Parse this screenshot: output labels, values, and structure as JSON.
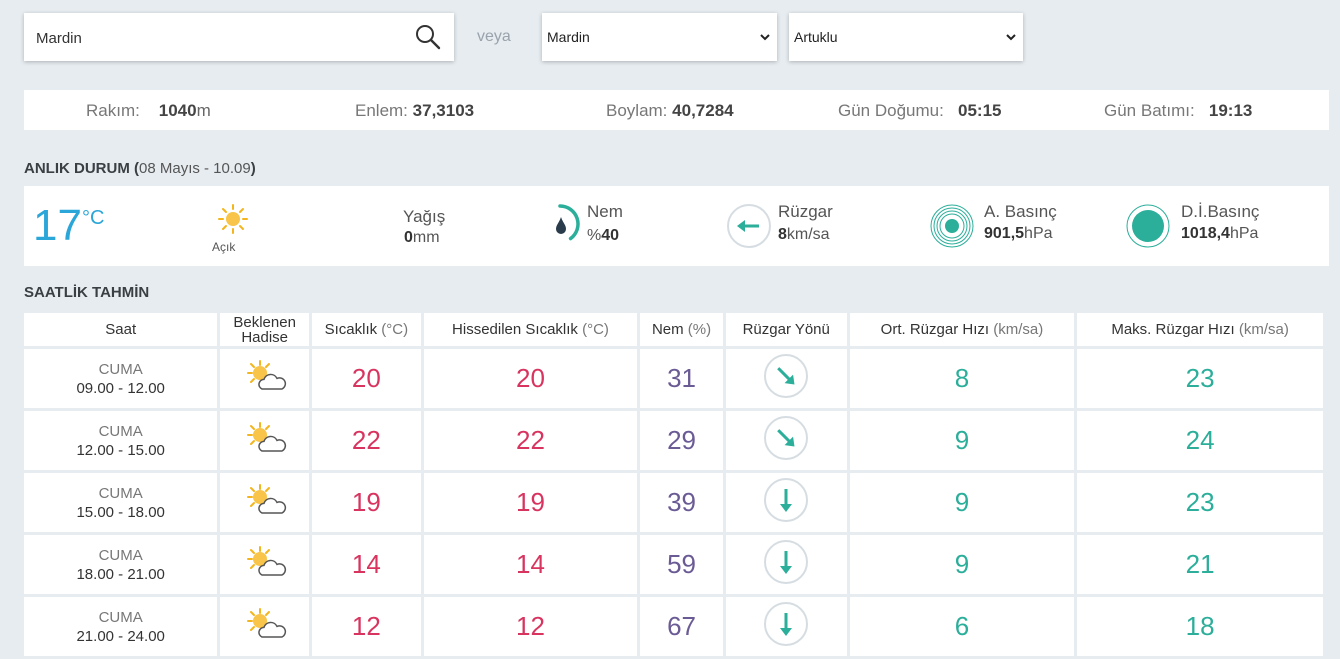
{
  "search": {
    "value": "Mardin"
  },
  "or_label": "veya",
  "city_select": {
    "selected": "Mardin"
  },
  "district_select": {
    "selected": "Artuklu"
  },
  "location_info": {
    "altitude_label": "Rakım:",
    "altitude_value": "1040",
    "altitude_unit": "m",
    "latitude_label": "Enlem:",
    "latitude_value": "37,3103",
    "longitude_label": "Boylam:",
    "longitude_value": "40,7284",
    "sunrise_label": "Gün Doğumu:",
    "sunrise_value": "05:15",
    "sunset_label": "Gün Batımı:",
    "sunset_value": "19:13"
  },
  "current": {
    "title": "ANLIK DURUM",
    "paren_open": " (",
    "date": "08 Mayıs - 10.09",
    "paren_close": ")",
    "temperature": "17",
    "temp_unit": "°C",
    "condition": "Açık",
    "condition_icon": "sun-icon",
    "precip_label": "Yağış",
    "precip_value": "0",
    "precip_unit": "mm",
    "humidity_label": "Nem",
    "humidity_prefix": "%",
    "humidity_value": "40",
    "humidity_fraction": 0.4,
    "wind_label": "Rüzgar",
    "wind_value": "8",
    "wind_unit": "km/sa",
    "wind_icon": "arrow-left-icon",
    "pressure_label": "A. Basınç",
    "pressure_value": "901,5",
    "pressure_unit": "hPa",
    "sea_pressure_label": "D.İ.Basınç",
    "sea_pressure_value": "1018,4",
    "sea_pressure_unit": "hPa",
    "accent_color": "#2bae9a",
    "temp_color": "#2aa6d8"
  },
  "hourly": {
    "title": "SAATLİK TAHMİN",
    "headers": {
      "time": "Saat",
      "event_1": "Beklenen",
      "event_2": "Hadise",
      "temp": "Sıcaklık",
      "temp_unit": "(°C)",
      "feels": "Hissedilen Sıcaklık",
      "feels_unit": "(°C)",
      "humidity": "Nem",
      "humidity_unit": "(%)",
      "wind_dir": "Rüzgar Yönü",
      "wind_avg": "Ort. Rüzgar Hızı",
      "wind_avg_unit": "(km/sa)",
      "wind_max": "Maks. Rüzgar Hızı",
      "wind_max_unit": "(km/sa)"
    },
    "rows": [
      {
        "day": "CUMA",
        "time": "09.00 - 12.00",
        "icon": "partly-cloudy-icon",
        "temp": "20",
        "feels": "20",
        "humidity": "31",
        "wind_dir": "arrow-down-right-icon",
        "wind_avg": "8",
        "wind_max": "23"
      },
      {
        "day": "CUMA",
        "time": "12.00 - 15.00",
        "icon": "partly-cloudy-icon",
        "temp": "22",
        "feels": "22",
        "humidity": "29",
        "wind_dir": "arrow-down-right-icon",
        "wind_avg": "9",
        "wind_max": "24"
      },
      {
        "day": "CUMA",
        "time": "15.00 - 18.00",
        "icon": "partly-cloudy-icon",
        "temp": "19",
        "feels": "19",
        "humidity": "39",
        "wind_dir": "arrow-down-icon",
        "wind_avg": "9",
        "wind_max": "23"
      },
      {
        "day": "CUMA",
        "time": "18.00 - 21.00",
        "icon": "partly-cloudy-icon",
        "temp": "14",
        "feels": "14",
        "humidity": "59",
        "wind_dir": "arrow-down-icon",
        "wind_avg": "9",
        "wind_max": "21"
      },
      {
        "day": "CUMA",
        "time": "21.00 - 24.00",
        "icon": "partly-cloudy-icon",
        "temp": "12",
        "feels": "12",
        "humidity": "67",
        "wind_dir": "arrow-down-icon",
        "wind_avg": "6",
        "wind_max": "18"
      }
    ]
  }
}
